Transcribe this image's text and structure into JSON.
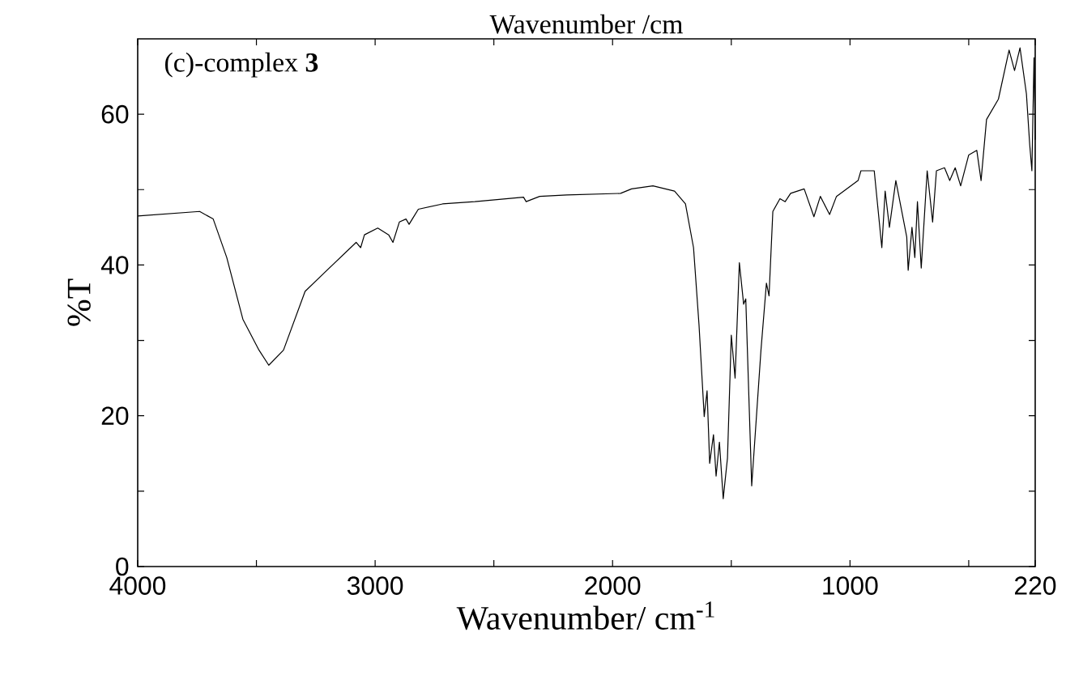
{
  "chart_data": {
    "type": "line",
    "title": "Wavenumber /cm",
    "xlabel": "Wavenumber/ cm$^{-1}$",
    "ylabel": "%T",
    "annotations": [
      "(c)-complex **3**"
    ],
    "xlim": [
      4000,
      220
    ],
    "ylim": [
      0,
      70
    ],
    "xticks": [
      4000,
      {
        "value": 3500,
        "label": null
      },
      3000,
      {
        "value": 2500,
        "label": null
      },
      2000,
      {
        "value": 1500,
        "label": null
      },
      1000,
      {
        "value": 500,
        "label": null
      },
      220
    ],
    "yticks": [
      0,
      {
        "value": 10,
        "label": null
      },
      20,
      {
        "value": 30,
        "label": null
      },
      40,
      {
        "value": 50,
        "label": null
      },
      60
    ],
    "grid": false,
    "marker": "none",
    "line_style": "solid",
    "series": [
      {
        "color": "#000000",
        "x": [
          4000,
          3739,
          3682,
          3625,
          3557,
          3489,
          3448,
          3386,
          3295,
          3216,
          3080,
          3061,
          3045,
          2989,
          2943,
          2925,
          2898,
          2870,
          2857,
          2818,
          2716,
          2580,
          2375,
          2364,
          2307,
          2193,
          1966,
          1920,
          1830,
          1739,
          1693,
          1659,
          1636,
          1614,
          1602,
          1591,
          1575,
          1564,
          1550,
          1534,
          1516,
          1500,
          1484,
          1466,
          1448,
          1439,
          1414,
          1375,
          1352,
          1341,
          1325,
          1295,
          1273,
          1250,
          1193,
          1152,
          1125,
          1086,
          1057,
          966,
          954,
          898,
          866,
          852,
          834,
          807,
          761,
          755,
          739,
          727,
          716,
          700,
          675,
          652,
          636,
          602,
          580,
          557,
          534,
          500,
          466,
          448,
          425,
          375,
          330,
          307,
          284,
          257,
          243,
          234,
          225,
          220
        ],
        "values": [
          46.5,
          47.1,
          46.1,
          41.0,
          32.8,
          28.7,
          26.7,
          28.7,
          36.5,
          38.9,
          43.0,
          42.3,
          44.0,
          44.9,
          44.0,
          43.0,
          45.7,
          46.1,
          45.4,
          47.4,
          48.1,
          48.4,
          49.0,
          48.4,
          49.1,
          49.3,
          49.5,
          50.1,
          50.5,
          49.8,
          48.1,
          42.3,
          32.1,
          19.9,
          23.3,
          13.7,
          17.5,
          12.0,
          16.5,
          9.0,
          14.4,
          30.7,
          25.0,
          40.3,
          34.8,
          35.5,
          10.7,
          28.7,
          37.6,
          35.9,
          47.1,
          48.8,
          48.4,
          49.5,
          50.1,
          46.4,
          49.1,
          46.7,
          49.1,
          51.2,
          52.5,
          52.5,
          42.3,
          49.8,
          45.0,
          51.2,
          43.7,
          39.3,
          45.0,
          41.0,
          48.4,
          39.6,
          52.5,
          45.7,
          52.5,
          52.9,
          51.2,
          52.9,
          50.5,
          54.6,
          55.2,
          51.2,
          59.3,
          62.0,
          68.5,
          65.8,
          68.8,
          62.7,
          55.9,
          52.5,
          67.5,
          56.6
        ]
      }
    ]
  }
}
